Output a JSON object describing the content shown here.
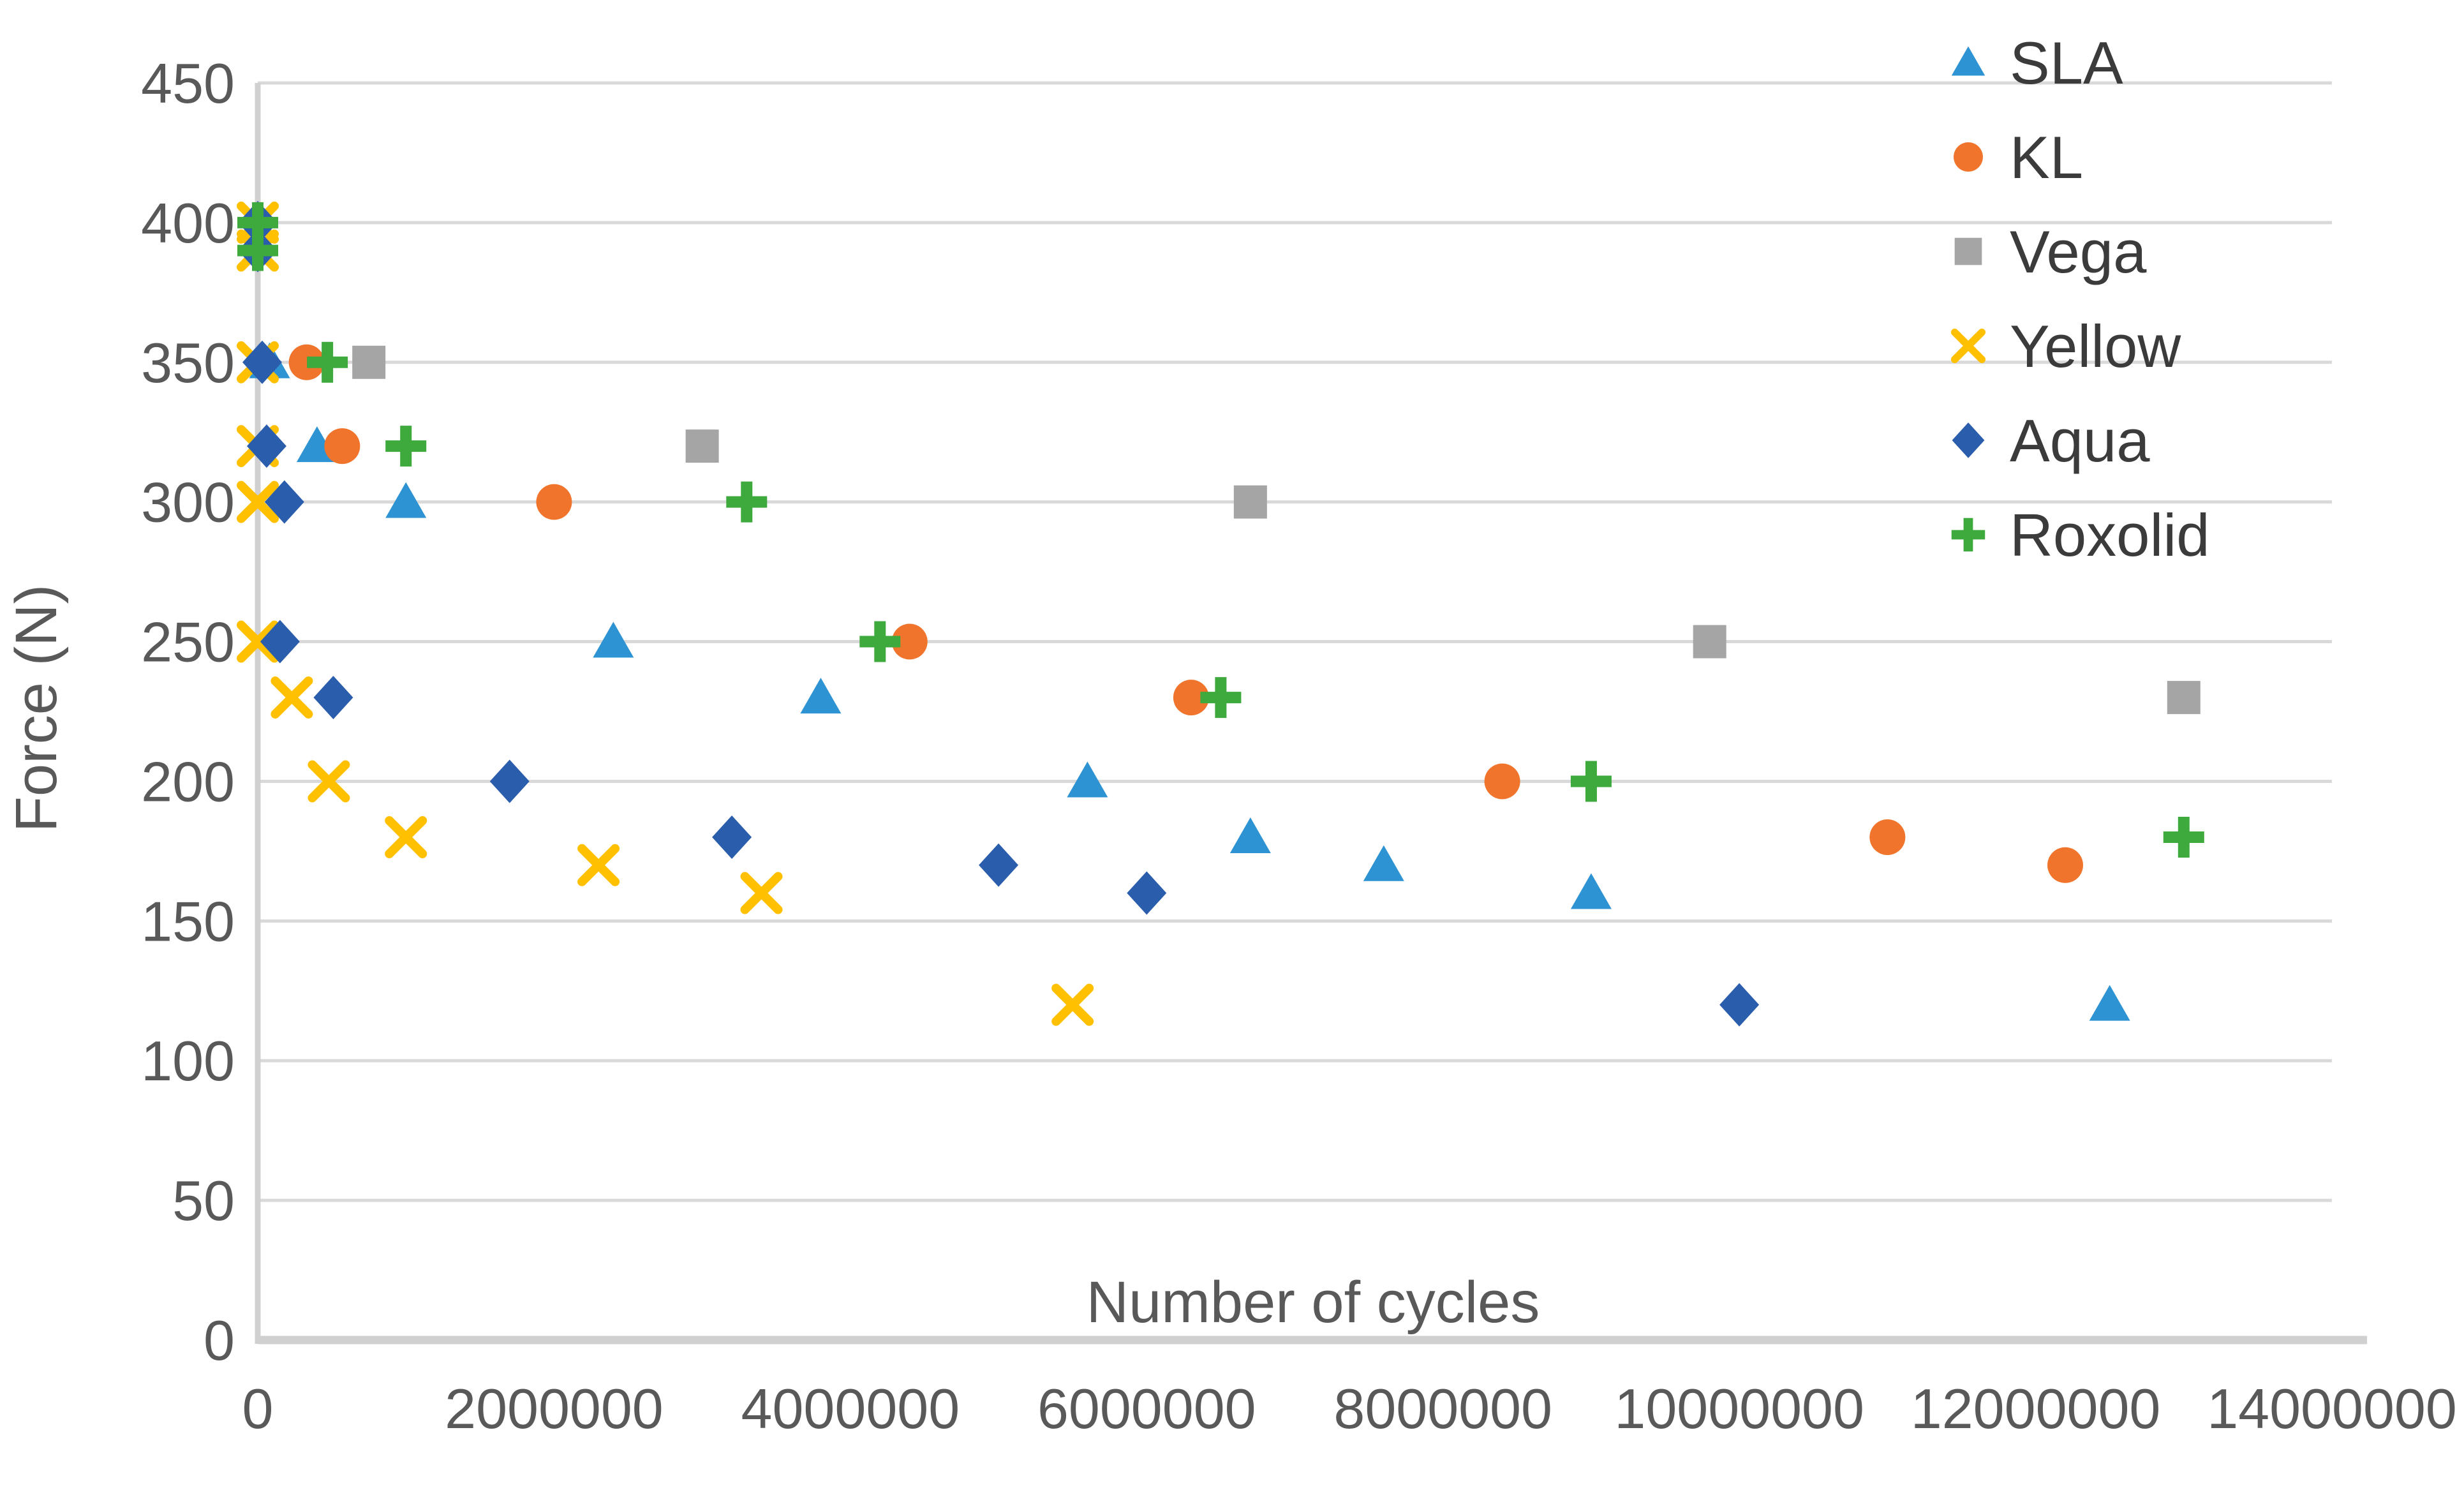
{
  "chart_data": {
    "type": "scatter",
    "title": "",
    "xlabel": "Number of cycles",
    "ylabel": "Force (N)",
    "xlim": [
      0,
      14000000
    ],
    "ylim": [
      0,
      450
    ],
    "xticks": [
      0,
      2000000,
      4000000,
      6000000,
      8000000,
      10000000,
      12000000,
      14000000
    ],
    "yticks": [
      0,
      50,
      100,
      150,
      200,
      250,
      300,
      350,
      400,
      450
    ],
    "grid": "horizontal-only",
    "gridline_color": "#d9d9d9",
    "axis_line_color": "#d0d0d0",
    "tick_label_color": "#595959",
    "axis_title_color": "#595959",
    "legend_text_color": "#3b3b3b",
    "legend_position": "right-inside-top",
    "series": [
      {
        "name": "SLA",
        "marker": "triangle",
        "color": "#2e93d3",
        "points": [
          [
            80000,
            350
          ],
          [
            400000,
            320
          ],
          [
            1000000,
            300
          ],
          [
            2400000,
            250
          ],
          [
            3800000,
            230
          ],
          [
            5600000,
            200
          ],
          [
            6700000,
            180
          ],
          [
            7600000,
            170
          ],
          [
            9000000,
            160
          ],
          [
            12500000,
            120
          ]
        ]
      },
      {
        "name": "KL",
        "marker": "circle",
        "color": "#f0742c",
        "points": [
          [
            330000,
            350
          ],
          [
            570000,
            320
          ],
          [
            2000000,
            300
          ],
          [
            4400000,
            250
          ],
          [
            6300000,
            230
          ],
          [
            8400000,
            200
          ],
          [
            11000000,
            180
          ],
          [
            12200000,
            170
          ]
        ]
      },
      {
        "name": "Vega",
        "marker": "square",
        "color": "#a5a5a5",
        "points": [
          [
            750000,
            350
          ],
          [
            3000000,
            320
          ],
          [
            6700000,
            300
          ],
          [
            9800000,
            250
          ],
          [
            13000000,
            230
          ]
        ]
      },
      {
        "name": "Yellow",
        "marker": "x",
        "color": "#ffc000",
        "points": [
          [
            0,
            400
          ],
          [
            0,
            390
          ],
          [
            0,
            350
          ],
          [
            0,
            320
          ],
          [
            0,
            300
          ],
          [
            0,
            250
          ],
          [
            230000,
            230
          ],
          [
            480000,
            200
          ],
          [
            1000000,
            180
          ],
          [
            2300000,
            170
          ],
          [
            3400000,
            160
          ],
          [
            5500000,
            120
          ]
        ]
      },
      {
        "name": "Aqua",
        "marker": "diamond",
        "color": "#2b5dad",
        "points": [
          [
            0,
            400
          ],
          [
            0,
            390
          ],
          [
            30000,
            350
          ],
          [
            60000,
            320
          ],
          [
            180000,
            300
          ],
          [
            150000,
            250
          ],
          [
            510000,
            230
          ],
          [
            1700000,
            200
          ],
          [
            3200000,
            180
          ],
          [
            5000000,
            170
          ],
          [
            6000000,
            160
          ],
          [
            10000000,
            120
          ]
        ]
      },
      {
        "name": "Roxolid",
        "marker": "plus",
        "color": "#3ea93c",
        "points": [
          [
            0,
            400
          ],
          [
            0,
            390
          ],
          [
            470000,
            350
          ],
          [
            1000000,
            320
          ],
          [
            3300000,
            300
          ],
          [
            4200000,
            250
          ],
          [
            6500000,
            230
          ],
          [
            9000000,
            200
          ],
          [
            13000000,
            180
          ]
        ]
      }
    ]
  }
}
